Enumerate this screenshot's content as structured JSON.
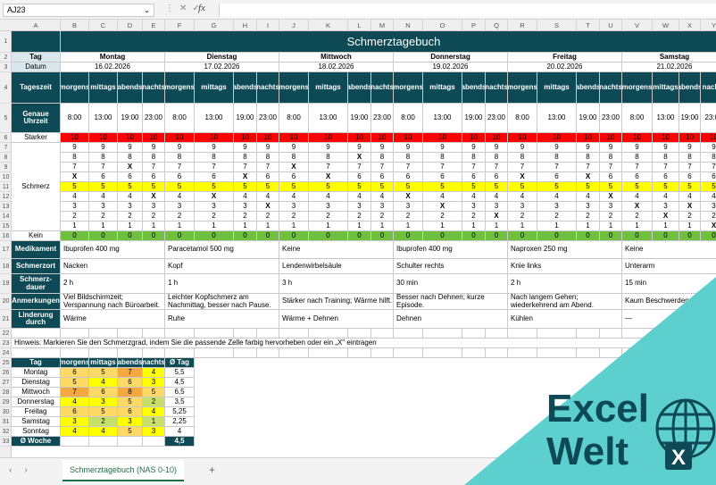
{
  "formula_bar": {
    "name_box": "AJ23",
    "fx": "fx",
    "formula": ""
  },
  "columns": [
    "A",
    "B",
    "C",
    "D",
    "E",
    "F",
    "G",
    "H",
    "I",
    "J",
    "K",
    "L",
    "M",
    "N",
    "O",
    "P",
    "Q",
    "R",
    "S",
    "T",
    "U",
    "V",
    "W",
    "X",
    "Y"
  ],
  "rows": [
    "1",
    "2",
    "3",
    "4",
    "5",
    "6",
    "7",
    "8",
    "9",
    "10",
    "11",
    "12",
    "13",
    "14",
    "15",
    "16",
    "17",
    "18",
    "19",
    "20",
    "21",
    "22",
    "23",
    "24",
    "25",
    "26",
    "27",
    "28",
    "29",
    "30",
    "31",
    "32",
    "33"
  ],
  "sheet": {
    "title": "Schmerztagebuch",
    "labels": {
      "tag": "Tag",
      "datum": "Datum",
      "tageszeit": "Tageszeit",
      "uhrzeit": "Genaue Uhrzeit",
      "starker": "Starker",
      "schmerz": "Schmerz",
      "kein": "Kein",
      "medikament": "Medikament",
      "schmerzort": "Schmerzort",
      "dauer": "Schmerz-dauer",
      "anmerkungen": "Anmerkungen",
      "linderung": "Linderung durch"
    },
    "days": [
      {
        "name": "Montag",
        "date": "16.02.2026"
      },
      {
        "name": "Dienstag",
        "date": "17.02.2026"
      },
      {
        "name": "Mittwoch",
        "date": "18.02.2026"
      },
      {
        "name": "Donnerstag",
        "date": "19.02.2026"
      },
      {
        "name": "Freitag",
        "date": "20.02.2026"
      },
      {
        "name": "Samstag",
        "date": "21.02.2026"
      }
    ],
    "times": [
      "morgens",
      "mittags",
      "abends",
      "nachts"
    ],
    "clock": [
      "8:00",
      "13:00",
      "19:00",
      "23:00"
    ],
    "marks": [
      6,
      5,
      7,
      4,
      5,
      4,
      6,
      3,
      7,
      6,
      8,
      5,
      4,
      3,
      5,
      2,
      6,
      5,
      6,
      4,
      3,
      2,
      3,
      1
    ],
    "details": [
      {
        "medikament": "Ibuprofen 400 mg",
        "ort": "Nacken",
        "dauer": "2 h",
        "anmerkung": "Viel Bildschirmzeit; Verspannung nach Büroarbeit.",
        "linderung": "Wärme"
      },
      {
        "medikament": "Paracetamol 500 mg",
        "ort": "Kopf",
        "dauer": "1 h",
        "anmerkung": "Leichter Kopfschmerz am Nachmittag, besser nach Pause.",
        "linderung": "Ruhe"
      },
      {
        "medikament": "Keine",
        "ort": "Lendenwirbelsäule",
        "dauer": "3 h",
        "anmerkung": "Stärker nach Training; Wärme hilft.",
        "linderung": "Wärme + Dehnen"
      },
      {
        "medikament": "Ibuprofen 400 mg",
        "ort": "Schulter rechts",
        "dauer": "30 min",
        "anmerkung": "Besser nach Dehnen; kurze Episode.",
        "linderung": "Dehnen"
      },
      {
        "medikament": "Naproxen 250 mg",
        "ort": "Knie links",
        "dauer": "2 h",
        "anmerkung": "Nach langem Gehen; wiederkehrend am Abend.",
        "linderung": "Kühlen"
      },
      {
        "medikament": "Keine",
        "ort": "Unterarm",
        "dauer": "15 min",
        "anmerkung": "Kaum Beschwerden",
        "linderung": "—"
      }
    ],
    "hint": "Hinweis: Markieren Sie den Schmerzgrad, indem Sie die passende Zelle farbig hervorheben oder ein „X\" eintragen",
    "summary": {
      "headers": [
        "Tag",
        "morgens",
        "mittags",
        "abends",
        "nachts",
        "Ø Tag"
      ],
      "rows": [
        {
          "day": "Montag",
          "vals": [
            "6",
            "5",
            "7",
            "4"
          ],
          "avg": "5,5"
        },
        {
          "day": "Dienstag",
          "vals": [
            "5",
            "4",
            "6",
            "3"
          ],
          "avg": "4,5"
        },
        {
          "day": "Mittwoch",
          "vals": [
            "7",
            "6",
            "8",
            "5"
          ],
          "avg": "6,5"
        },
        {
          "day": "Donnerstag",
          "vals": [
            "4",
            "3",
            "5",
            "2"
          ],
          "avg": "3,5"
        },
        {
          "day": "Freitag",
          "vals": [
            "6",
            "5",
            "6",
            "4"
          ],
          "avg": "5,25"
        },
        {
          "day": "Samstag",
          "vals": [
            "3",
            "2",
            "3",
            "1"
          ],
          "avg": "2,25"
        },
        {
          "day": "Sonntag",
          "vals": [
            "4",
            "4",
            "5",
            "3"
          ],
          "avg": "4"
        }
      ],
      "footer_label": "Ø Woche",
      "footer_avg": "4,5"
    }
  },
  "sheet_tabs": {
    "active": "Schmerztagebuch (NAS 0-10)",
    "add": "+"
  },
  "logo": {
    "line1": "Excel",
    "line2": "Welt",
    "letter": "X",
    "bg": "#5ecfcf",
    "text_color": "#0e4a56"
  },
  "colors": {
    "header": "#0e4a56",
    "red": "#ff0000",
    "yellow": "#ffff00",
    "green": "#70c040",
    "orange": "#f4a940",
    "gold": "#ffd966",
    "lime": "#c6e06a"
  }
}
